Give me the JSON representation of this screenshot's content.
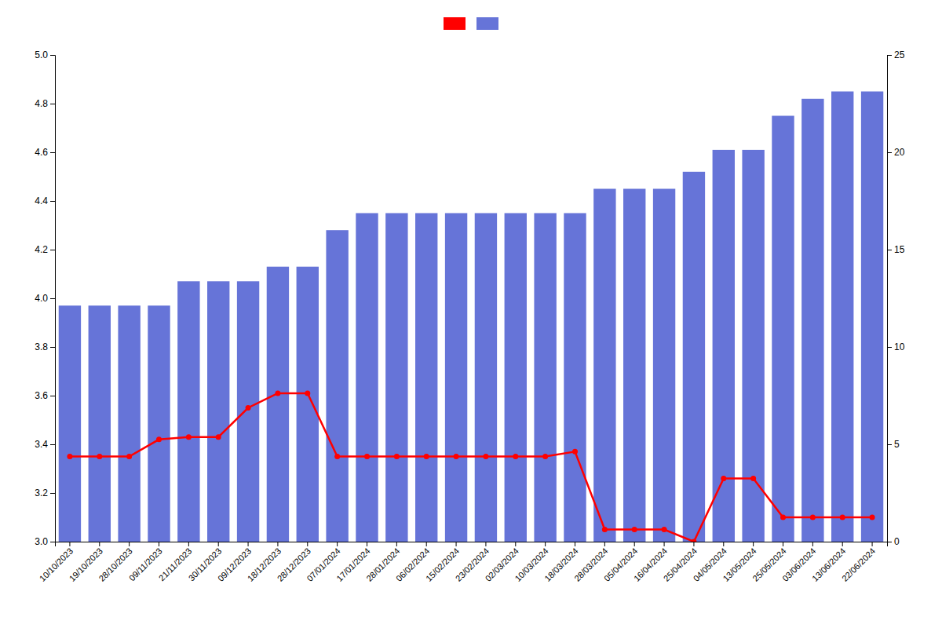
{
  "chart_data": {
    "type": "bar",
    "categories": [
      "10/10/2023",
      "19/10/2023",
      "28/10/2023",
      "09/11/2023",
      "21/11/2023",
      "30/11/2023",
      "09/12/2023",
      "18/12/2023",
      "28/12/2023",
      "07/01/2024",
      "17/01/2024",
      "28/01/2024",
      "06/02/2024",
      "15/02/2024",
      "23/02/2024",
      "02/03/2024",
      "10/03/2024",
      "18/03/2024",
      "28/03/2024",
      "05/04/2024",
      "16/04/2024",
      "25/04/2024",
      "04/05/2024",
      "13/05/2024",
      "25/05/2024",
      "03/06/2024",
      "13/06/2024",
      "22/06/2024"
    ],
    "series": [
      {
        "type": "line",
        "color": "#ff0000",
        "marker": "circle",
        "values": [
          3.35,
          3.35,
          3.35,
          3.42,
          3.43,
          3.43,
          3.55,
          3.61,
          3.61,
          3.35,
          3.35,
          3.35,
          3.35,
          3.35,
          3.35,
          3.35,
          3.35,
          3.37,
          3.05,
          3.05,
          3.05,
          3.0,
          3.26,
          3.26,
          3.1,
          3.1,
          3.1,
          3.1
        ]
      },
      {
        "type": "bar",
        "color": "#6674d8",
        "values": [
          3.97,
          3.97,
          3.97,
          3.97,
          4.07,
          4.07,
          4.07,
          4.13,
          4.13,
          4.28,
          4.35,
          4.35,
          4.35,
          4.35,
          4.35,
          4.35,
          4.35,
          4.35,
          4.45,
          4.45,
          4.45,
          4.52,
          4.61,
          4.61,
          4.75,
          4.82,
          4.85,
          4.85
        ]
      }
    ],
    "ylim": [
      3.0,
      5.0
    ],
    "yticks": [
      {
        "value": 3.0,
        "label": "3.0"
      },
      3.2,
      3.4,
      3.6,
      3.8,
      {
        "value": 4.0,
        "label": "4.0"
      },
      4.2,
      4.4,
      4.6,
      4.8,
      {
        "value": 5.0,
        "label": "5.0"
      }
    ],
    "y2lim": [
      0,
      25
    ],
    "y2ticks": [
      0,
      5,
      10,
      15,
      20,
      25
    ],
    "grid": false,
    "legend": "top"
  }
}
